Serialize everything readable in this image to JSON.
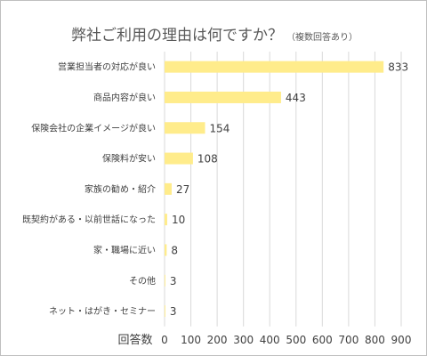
{
  "chart_data": {
    "type": "bar",
    "orientation": "horizontal",
    "title": "弊社ご利用の理由は何ですか？",
    "subtitle": "（複数回答あり）",
    "xlabel": "回答数",
    "ylabel": "",
    "categories": [
      "営業担当者の対応が良い",
      "商品内容が良い",
      "保険会社の企業イメージが良い",
      "保険料が安い",
      "家族の勧め・紹介",
      "既契約がある・以前世話になった",
      "家・職場に近い",
      "その他",
      "ネット・はがき・セミナー"
    ],
    "values": [
      833,
      443,
      154,
      108,
      27,
      10,
      8,
      3,
      3
    ],
    "xlim": [
      0,
      900
    ],
    "x_ticks": [
      0,
      100,
      200,
      300,
      400,
      500,
      600,
      700,
      800,
      900
    ],
    "grid": true,
    "legend": "none",
    "bar_color": "#ffec8b",
    "grid_color": "#d9d9d9"
  }
}
